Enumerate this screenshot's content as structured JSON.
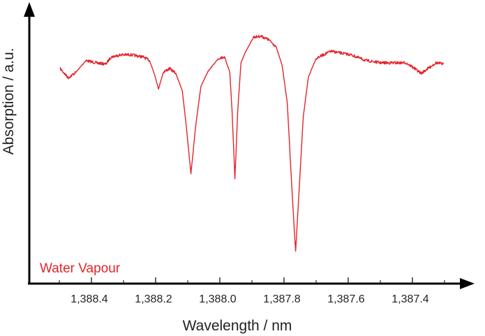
{
  "chart_data": {
    "type": "line",
    "title": "",
    "xlabel": "Wavelength / nm",
    "ylabel": "Absorption / a.u.",
    "x_reversed": true,
    "xlim": [
      1388.6,
      1387.2
    ],
    "ylim": [
      0,
      1.1
    ],
    "xticks": [
      1388.4,
      1388.2,
      1388.0,
      1387.8,
      1387.6,
      1387.4
    ],
    "xtick_labels": [
      "1,388.4",
      "1,388.2",
      "1,388.0",
      "1,387.8",
      "1,387.6",
      "1,387.4"
    ],
    "minor_xticks": [
      1388.5,
      1388.3,
      1388.1,
      1387.9,
      1387.7,
      1387.5,
      1387.3
    ],
    "grid": false,
    "legend_placement": "bottom-left",
    "series": [
      {
        "name": "Water Vapour",
        "color": "#e3242b",
        "x": [
          1388.497,
          1388.472,
          1388.448,
          1388.417,
          1388.386,
          1388.355,
          1388.339,
          1388.308,
          1388.277,
          1388.238,
          1388.219,
          1388.203,
          1388.191,
          1388.176,
          1388.156,
          1388.137,
          1388.117,
          1388.106,
          1388.09,
          1388.075,
          1388.059,
          1388.036,
          1388.004,
          1387.985,
          1387.969,
          1387.962,
          1387.953,
          1387.944,
          1387.934,
          1387.919,
          1387.895,
          1387.872,
          1387.848,
          1387.825,
          1387.806,
          1387.79,
          1387.775,
          1387.764,
          1387.753,
          1387.74,
          1387.724,
          1387.7,
          1387.654,
          1387.592,
          1387.545,
          1387.498,
          1387.42,
          1387.397,
          1387.373,
          1387.342,
          1387.327,
          1387.303
        ],
        "y": [
          0.855,
          0.818,
          0.841,
          0.887,
          0.878,
          0.873,
          0.901,
          0.91,
          0.91,
          0.901,
          0.887,
          0.831,
          0.774,
          0.841,
          0.855,
          0.836,
          0.767,
          0.646,
          0.438,
          0.628,
          0.785,
          0.845,
          0.896,
          0.901,
          0.841,
          0.692,
          0.417,
          0.692,
          0.878,
          0.924,
          0.98,
          0.984,
          0.97,
          0.943,
          0.869,
          0.72,
          0.369,
          0.128,
          0.369,
          0.665,
          0.822,
          0.896,
          0.924,
          0.91,
          0.887,
          0.878,
          0.878,
          0.859,
          0.836,
          0.864,
          0.878,
          0.873
        ]
      }
    ]
  }
}
